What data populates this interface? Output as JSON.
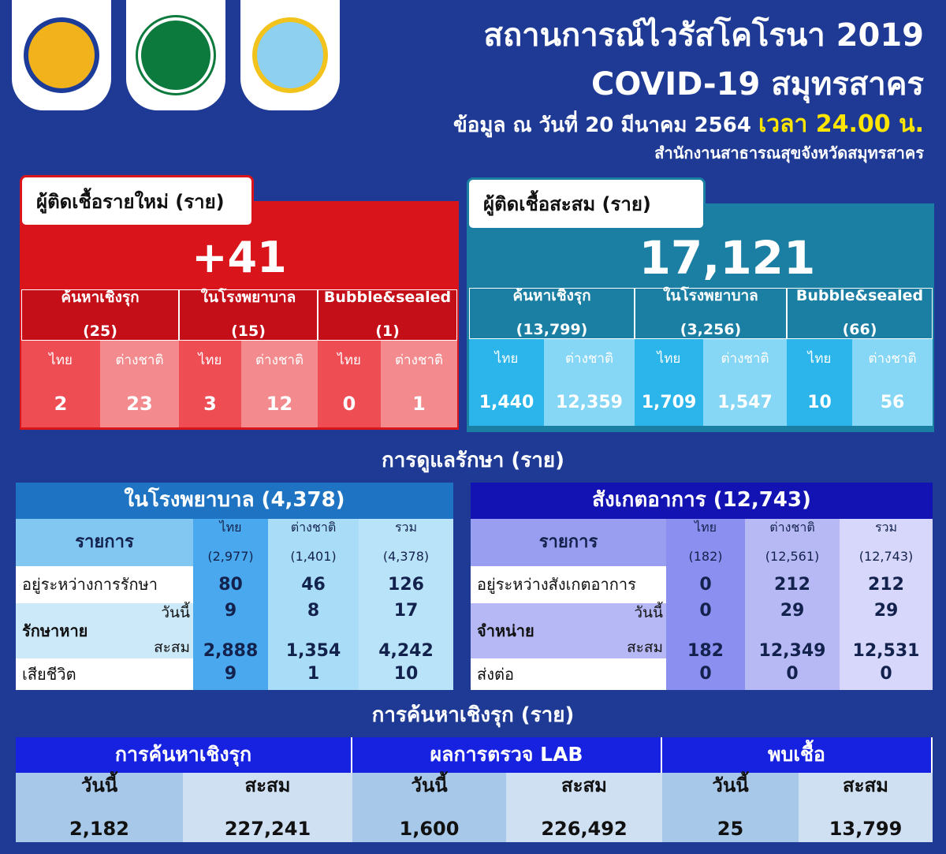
{
  "header": {
    "title_line1": "สถานการณ์ไวรัสโคโรนา 2019",
    "title_line2": "COVID-19 สมุทรสาคร",
    "date_prefix": "ข้อมูล ณ วันที่ 20 มีนาคม 2564",
    "date_time": "เวลา 24.00 น.",
    "agency": "สำนักงานสาธารณสุขจังหวัดสมุทรสาคร"
  },
  "colors": {
    "background": "#1e3a94",
    "new_cases": "#d9141b",
    "cumulative": "#1a7fa3",
    "highlight": "#ffe600"
  },
  "new_cases": {
    "label": "ผู้ติดเชื้อรายใหม่ (ราย)",
    "total": "+41",
    "groups": [
      {
        "name": "ค้นหาเชิงรุก",
        "count": "(25)",
        "thai": "2",
        "foreign": "23"
      },
      {
        "name": "ในโรงพยาบาล",
        "count": "(15)",
        "thai": "3",
        "foreign": "12"
      },
      {
        "name": "Bubble&sealed",
        "count": "(1)",
        "thai": "0",
        "foreign": "1"
      }
    ],
    "thai_label": "ไทย",
    "foreign_label": "ต่างชาติ"
  },
  "cumulative": {
    "label": "ผู้ติดเชื้อสะสม (ราย)",
    "total": "17,121",
    "groups": [
      {
        "name": "ค้นหาเชิงรุก",
        "count": "(13,799)",
        "thai": "1,440",
        "foreign": "12,359"
      },
      {
        "name": "ในโรงพยาบาล",
        "count": "(3,256)",
        "thai": "1,709",
        "foreign": "1,547"
      },
      {
        "name": "Bubble&sealed",
        "count": "(66)",
        "thai": "10",
        "foreign": "56"
      }
    ],
    "thai_label": "ไทย",
    "foreign_label": "ต่างชาติ"
  },
  "care": {
    "title": "การดูแลรักษา (ราย)",
    "hospital": {
      "title": "ในโรงพยาบาล (4,378)",
      "col_item": "รายการ",
      "cols": [
        [
          "ไทย",
          "(2,977)"
        ],
        [
          "ต่างชาติ",
          "(1,401)"
        ],
        [
          "รวม",
          "(4,378)"
        ]
      ],
      "row1": {
        "label": "อยู่ระหว่างการรักษา",
        "v": [
          "80",
          "46",
          "126"
        ]
      },
      "row2": {
        "label": "รักษาหาย",
        "today": "วันนี้",
        "cum": "สะสม",
        "v_today": [
          "9",
          "8",
          "17"
        ],
        "v_cum": [
          "2,888",
          "1,354",
          "4,242"
        ]
      },
      "row3": {
        "label": "เสียชีวิต",
        "v": [
          "9",
          "1",
          "10"
        ]
      }
    },
    "observe": {
      "title": "สังเกตอาการ (12,743)",
      "col_item": "รายการ",
      "cols": [
        [
          "ไทย",
          "(182)"
        ],
        [
          "ต่างชาติ",
          "(12,561)"
        ],
        [
          "รวม",
          "(12,743)"
        ]
      ],
      "row1": {
        "label": "อยู่ระหว่างสังเกตอาการ",
        "v": [
          "0",
          "212",
          "212"
        ]
      },
      "row2": {
        "label": "จำหน่าย",
        "today": "วันนี้",
        "cum": "สะสม",
        "v_today": [
          "0",
          "29",
          "29"
        ],
        "v_cum": [
          "182",
          "12,349",
          "12,531"
        ]
      },
      "row3": {
        "label": "ส่งต่อ",
        "v": [
          "0",
          "0",
          "0"
        ]
      }
    }
  },
  "active": {
    "title": "การค้นหาเชิงรุก (ราย)",
    "groups": [
      {
        "name": "การค้นหาเชิงรุก",
        "today_label": "วันนี้",
        "cum_label": "สะสม",
        "today": "2,182",
        "cum": "227,241"
      },
      {
        "name": "ผลการตรวจ LAB",
        "today_label": "วันนี้",
        "cum_label": "สะสม",
        "today": "1,600",
        "cum": "226,492"
      },
      {
        "name": "พบเชื้อ",
        "today_label": "วันนี้",
        "cum_label": "สะสม",
        "today": "25",
        "cum": "13,799"
      }
    ]
  }
}
